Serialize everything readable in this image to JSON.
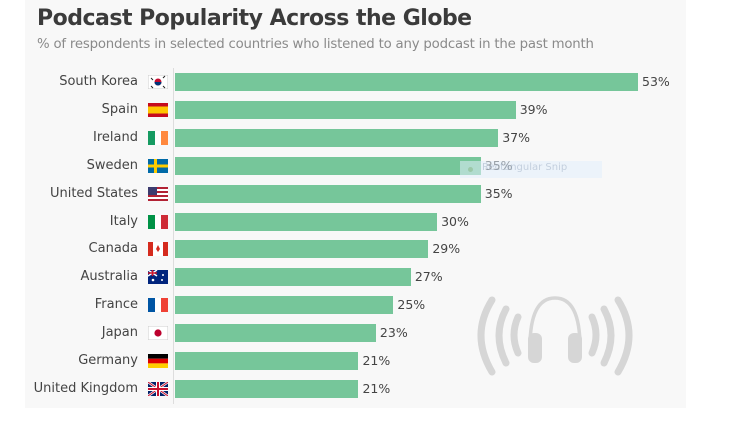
{
  "chart_data": {
    "type": "bar",
    "orientation": "horizontal",
    "title": "Podcast Popularity Across the Globe",
    "subtitle": "% of respondents in selected countries who listened to any podcast in the past month",
    "categories": [
      "South Korea",
      "Spain",
      "Ireland",
      "Sweden",
      "United States",
      "Italy",
      "Canada",
      "Australia",
      "France",
      "Japan",
      "Germany",
      "United Kingdom"
    ],
    "values": [
      53,
      39,
      37,
      35,
      35,
      30,
      29,
      27,
      25,
      23,
      21,
      21
    ],
    "value_labels": [
      "53%",
      "39%",
      "37%",
      "35%",
      "35%",
      "30%",
      "29%",
      "27%",
      "25%",
      "23%",
      "21%",
      "21%"
    ],
    "xlim": [
      0,
      53
    ],
    "grid": false,
    "bar_color": "#76c69a"
  },
  "overlay": {
    "snip_label": "Rectangular Snip"
  },
  "icons": {
    "watermark": "headphones-icon"
  }
}
